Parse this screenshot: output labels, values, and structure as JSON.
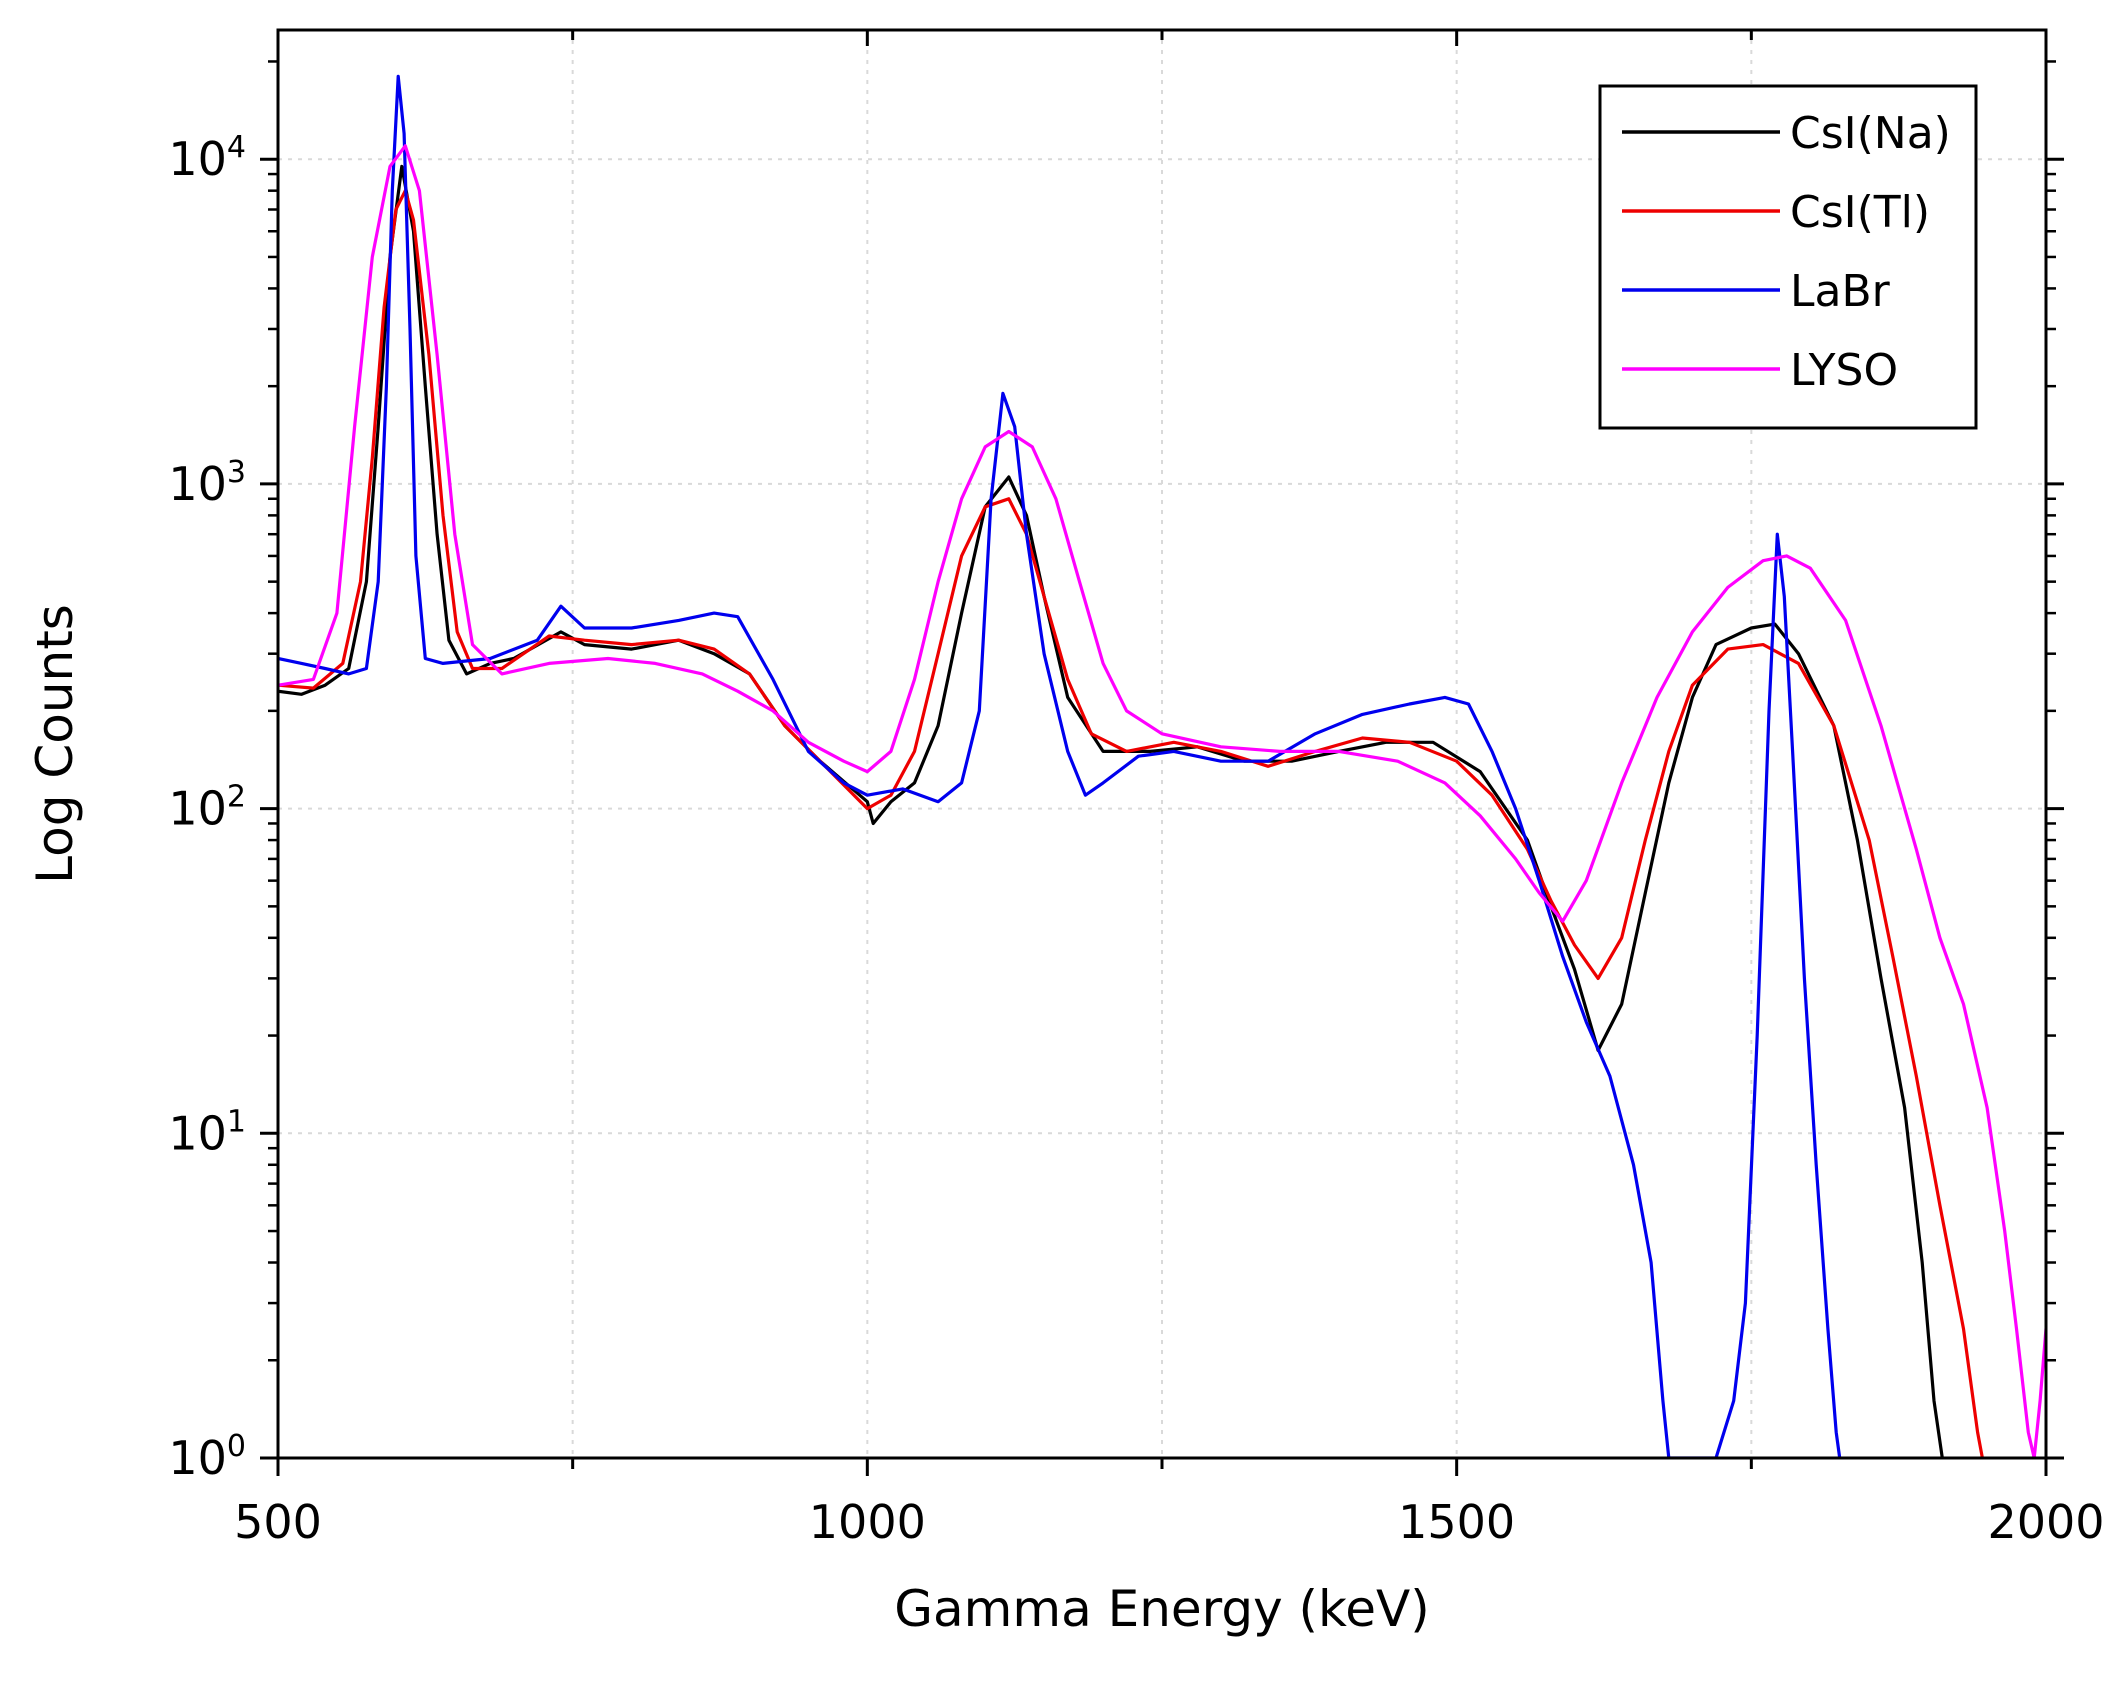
{
  "chart_data": {
    "type": "line",
    "title": "",
    "xlabel": "Gamma Energy (keV)",
    "ylabel": "Log Counts",
    "xlim": [
      500,
      2000
    ],
    "ylim": [
      1,
      25000
    ],
    "yscale": "log",
    "grid": true,
    "legend_position": "top-right",
    "x_ticks": [
      {
        "value": 500,
        "label": "500"
      },
      {
        "value": 1000,
        "label": "1000"
      },
      {
        "value": 1500,
        "label": "1500"
      },
      {
        "value": 2000,
        "label": "2000"
      }
    ],
    "x_minor_ticks": [
      750,
      1250,
      1750
    ],
    "y_ticks": [
      {
        "value": 1,
        "base": "10",
        "exp": "0"
      },
      {
        "value": 10,
        "base": "10",
        "exp": "1"
      },
      {
        "value": 100,
        "base": "10",
        "exp": "2"
      },
      {
        "value": 1000,
        "base": "10",
        "exp": "3"
      },
      {
        "value": 10000,
        "base": "10",
        "exp": "4"
      }
    ],
    "series": [
      {
        "name": "CsI(Na)",
        "color": "#000000",
        "points": [
          [
            500,
            230
          ],
          [
            520,
            225
          ],
          [
            540,
            240
          ],
          [
            560,
            270
          ],
          [
            575,
            500
          ],
          [
            585,
            1500
          ],
          [
            595,
            5000
          ],
          [
            605,
            9500
          ],
          [
            615,
            6000
          ],
          [
            625,
            2000
          ],
          [
            635,
            700
          ],
          [
            645,
            330
          ],
          [
            660,
            260
          ],
          [
            680,
            280
          ],
          [
            700,
            290
          ],
          [
            740,
            350
          ],
          [
            760,
            320
          ],
          [
            800,
            310
          ],
          [
            840,
            330
          ],
          [
            870,
            300
          ],
          [
            900,
            260
          ],
          [
            930,
            180
          ],
          [
            960,
            140
          ],
          [
            1000,
            105
          ],
          [
            1005,
            90
          ],
          [
            1020,
            105
          ],
          [
            1040,
            120
          ],
          [
            1060,
            180
          ],
          [
            1080,
            400
          ],
          [
            1100,
            850
          ],
          [
            1120,
            1050
          ],
          [
            1135,
            800
          ],
          [
            1150,
            450
          ],
          [
            1170,
            220
          ],
          [
            1200,
            150
          ],
          [
            1240,
            150
          ],
          [
            1280,
            155
          ],
          [
            1320,
            140
          ],
          [
            1360,
            140
          ],
          [
            1400,
            150
          ],
          [
            1440,
            160
          ],
          [
            1480,
            160
          ],
          [
            1520,
            130
          ],
          [
            1560,
            80
          ],
          [
            1580,
            50
          ],
          [
            1600,
            32
          ],
          [
            1620,
            18
          ],
          [
            1640,
            25
          ],
          [
            1660,
            55
          ],
          [
            1680,
            120
          ],
          [
            1700,
            220
          ],
          [
            1720,
            320
          ],
          [
            1750,
            360
          ],
          [
            1770,
            370
          ],
          [
            1790,
            300
          ],
          [
            1820,
            180
          ],
          [
            1840,
            80
          ],
          [
            1860,
            30
          ],
          [
            1880,
            12
          ],
          [
            1895,
            4
          ],
          [
            1905,
            1.5
          ],
          [
            1912,
            1
          ]
        ]
      },
      {
        "name": "CsI(Tl)",
        "color": "#ee0000",
        "points": [
          [
            500,
            240
          ],
          [
            530,
            235
          ],
          [
            555,
            280
          ],
          [
            570,
            500
          ],
          [
            580,
            1200
          ],
          [
            590,
            3500
          ],
          [
            600,
            7000
          ],
          [
            608,
            8000
          ],
          [
            615,
            6500
          ],
          [
            628,
            2500
          ],
          [
            640,
            800
          ],
          [
            652,
            350
          ],
          [
            665,
            270
          ],
          [
            690,
            270
          ],
          [
            730,
            340
          ],
          [
            760,
            330
          ],
          [
            800,
            320
          ],
          [
            840,
            330
          ],
          [
            870,
            310
          ],
          [
            900,
            260
          ],
          [
            930,
            180
          ],
          [
            960,
            140
          ],
          [
            1000,
            100
          ],
          [
            1020,
            110
          ],
          [
            1040,
            150
          ],
          [
            1060,
            300
          ],
          [
            1080,
            600
          ],
          [
            1100,
            850
          ],
          [
            1120,
            900
          ],
          [
            1135,
            700
          ],
          [
            1150,
            450
          ],
          [
            1170,
            250
          ],
          [
            1190,
            170
          ],
          [
            1220,
            150
          ],
          [
            1260,
            160
          ],
          [
            1300,
            150
          ],
          [
            1340,
            135
          ],
          [
            1380,
            150
          ],
          [
            1420,
            165
          ],
          [
            1460,
            160
          ],
          [
            1500,
            140
          ],
          [
            1530,
            110
          ],
          [
            1560,
            75
          ],
          [
            1580,
            52
          ],
          [
            1600,
            38
          ],
          [
            1620,
            30
          ],
          [
            1640,
            40
          ],
          [
            1660,
            80
          ],
          [
            1680,
            150
          ],
          [
            1700,
            240
          ],
          [
            1730,
            310
          ],
          [
            1760,
            320
          ],
          [
            1790,
            280
          ],
          [
            1820,
            180
          ],
          [
            1850,
            80
          ],
          [
            1870,
            35
          ],
          [
            1890,
            15
          ],
          [
            1910,
            6
          ],
          [
            1930,
            2.5
          ],
          [
            1942,
            1.2
          ],
          [
            1946,
            1
          ]
        ]
      },
      {
        "name": "LaBr",
        "color": "#0000ee",
        "points": [
          [
            500,
            290
          ],
          [
            520,
            280
          ],
          [
            540,
            270
          ],
          [
            560,
            260
          ],
          [
            575,
            270
          ],
          [
            585,
            500
          ],
          [
            592,
            2000
          ],
          [
            597,
            8000
          ],
          [
            602,
            18000
          ],
          [
            607,
            12000
          ],
          [
            612,
            3000
          ],
          [
            617,
            600
          ],
          [
            625,
            290
          ],
          [
            640,
            280
          ],
          [
            680,
            290
          ],
          [
            720,
            330
          ],
          [
            740,
            420
          ],
          [
            760,
            360
          ],
          [
            800,
            360
          ],
          [
            840,
            380
          ],
          [
            870,
            400
          ],
          [
            890,
            390
          ],
          [
            920,
            250
          ],
          [
            950,
            150
          ],
          [
            980,
            120
          ],
          [
            1000,
            110
          ],
          [
            1030,
            115
          ],
          [
            1060,
            105
          ],
          [
            1080,
            120
          ],
          [
            1095,
            200
          ],
          [
            1105,
            900
          ],
          [
            1115,
            1900
          ],
          [
            1125,
            1500
          ],
          [
            1135,
            700
          ],
          [
            1150,
            300
          ],
          [
            1170,
            150
          ],
          [
            1185,
            110
          ],
          [
            1200,
            120
          ],
          [
            1230,
            145
          ],
          [
            1260,
            150
          ],
          [
            1300,
            140
          ],
          [
            1340,
            140
          ],
          [
            1380,
            170
          ],
          [
            1420,
            195
          ],
          [
            1460,
            210
          ],
          [
            1490,
            220
          ],
          [
            1510,
            210
          ],
          [
            1530,
            150
          ],
          [
            1550,
            100
          ],
          [
            1570,
            60
          ],
          [
            1590,
            35
          ],
          [
            1610,
            22
          ],
          [
            1630,
            15
          ],
          [
            1650,
            8
          ],
          [
            1665,
            4
          ],
          [
            1675,
            1.5
          ],
          [
            1680,
            1
          ],
          [
            1700,
            1
          ],
          [
            1720,
            1
          ],
          [
            1735,
            1.5
          ],
          [
            1745,
            3
          ],
          [
            1755,
            20
          ],
          [
            1765,
            200
          ],
          [
            1772,
            700
          ],
          [
            1778,
            450
          ],
          [
            1785,
            150
          ],
          [
            1795,
            30
          ],
          [
            1805,
            8
          ],
          [
            1815,
            2.5
          ],
          [
            1822,
            1.2
          ],
          [
            1825,
            1
          ]
        ]
      },
      {
        "name": "LYSO",
        "color": "#ff00ff",
        "points": [
          [
            500,
            240
          ],
          [
            530,
            250
          ],
          [
            550,
            400
          ],
          [
            565,
            1500
          ],
          [
            580,
            5000
          ],
          [
            595,
            9500
          ],
          [
            608,
            11000
          ],
          [
            620,
            8000
          ],
          [
            635,
            2500
          ],
          [
            650,
            700
          ],
          [
            665,
            320
          ],
          [
            690,
            260
          ],
          [
            730,
            280
          ],
          [
            780,
            290
          ],
          [
            820,
            280
          ],
          [
            860,
            260
          ],
          [
            890,
            230
          ],
          [
            920,
            200
          ],
          [
            950,
            160
          ],
          [
            980,
            140
          ],
          [
            1000,
            130
          ],
          [
            1020,
            150
          ],
          [
            1040,
            250
          ],
          [
            1060,
            500
          ],
          [
            1080,
            900
          ],
          [
            1100,
            1300
          ],
          [
            1120,
            1450
          ],
          [
            1140,
            1300
          ],
          [
            1160,
            900
          ],
          [
            1180,
            500
          ],
          [
            1200,
            280
          ],
          [
            1220,
            200
          ],
          [
            1250,
            170
          ],
          [
            1300,
            155
          ],
          [
            1350,
            150
          ],
          [
            1400,
            150
          ],
          [
            1450,
            140
          ],
          [
            1490,
            120
          ],
          [
            1520,
            95
          ],
          [
            1550,
            70
          ],
          [
            1570,
            55
          ],
          [
            1590,
            45
          ],
          [
            1610,
            60
          ],
          [
            1640,
            120
          ],
          [
            1670,
            220
          ],
          [
            1700,
            350
          ],
          [
            1730,
            480
          ],
          [
            1760,
            580
          ],
          [
            1780,
            600
          ],
          [
            1800,
            550
          ],
          [
            1830,
            380
          ],
          [
            1860,
            180
          ],
          [
            1890,
            75
          ],
          [
            1910,
            40
          ],
          [
            1930,
            25
          ],
          [
            1950,
            12
          ],
          [
            1965,
            5
          ],
          [
            1975,
            2.5
          ],
          [
            1985,
            1.2
          ],
          [
            1990,
            1
          ],
          [
            1995,
            1.5
          ],
          [
            2000,
            2.5
          ]
        ]
      }
    ]
  }
}
